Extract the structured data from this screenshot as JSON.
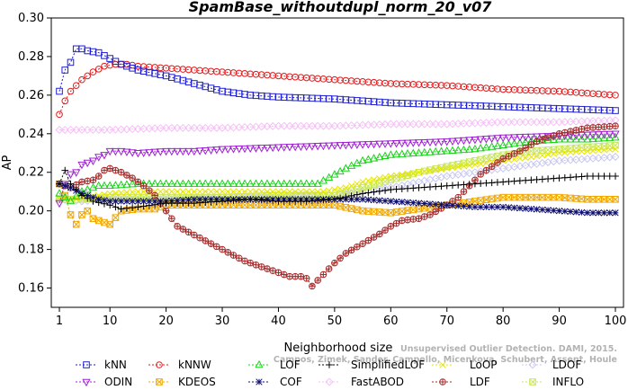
{
  "chart_data": {
    "type": "line",
    "title": "SpamBase_withoutdupl_norm_20_v07",
    "xlabel": "Neighborhood size",
    "ylabel": "AP",
    "xlim": [
      1,
      100
    ],
    "ylim": [
      0.15,
      0.3
    ],
    "x_ticks": [
      1,
      10,
      20,
      30,
      40,
      50,
      60,
      70,
      80,
      90,
      100
    ],
    "y_ticks": [
      0.16,
      0.18,
      0.2,
      0.22,
      0.24,
      0.26,
      0.28,
      0.3
    ],
    "x_tick_labels": [
      "1",
      "10",
      "20",
      "30",
      "40",
      "50",
      "60",
      "70",
      "80",
      "90",
      "100"
    ],
    "y_tick_labels": [
      "0.16",
      "0.18",
      "0.20",
      "0.22",
      "0.24",
      "0.26",
      "0.28",
      "0.30"
    ],
    "grid": false,
    "legend_position": "bottom",
    "series": [
      {
        "name": "kNN",
        "color": "#1f1fd4",
        "marker": "square",
        "points": [
          [
            1,
            0.262
          ],
          [
            2,
            0.273
          ],
          [
            3,
            0.277
          ],
          [
            4,
            0.284
          ],
          [
            5,
            0.284
          ],
          [
            6,
            0.283
          ],
          [
            8,
            0.282
          ],
          [
            10,
            0.279
          ],
          [
            12,
            0.276
          ],
          [
            15,
            0.273
          ],
          [
            20,
            0.27
          ],
          [
            25,
            0.266
          ],
          [
            30,
            0.262
          ],
          [
            35,
            0.26
          ],
          [
            40,
            0.259
          ],
          [
            50,
            0.258
          ],
          [
            60,
            0.256
          ],
          [
            70,
            0.255
          ],
          [
            80,
            0.254
          ],
          [
            90,
            0.253
          ],
          [
            100,
            0.252
          ]
        ]
      },
      {
        "name": "kNNW",
        "color": "#e31a1c",
        "marker": "circle",
        "points": [
          [
            1,
            0.25
          ],
          [
            2,
            0.257
          ],
          [
            3,
            0.262
          ],
          [
            5,
            0.268
          ],
          [
            7,
            0.272
          ],
          [
            9,
            0.275
          ],
          [
            11,
            0.276
          ],
          [
            13,
            0.276
          ],
          [
            15,
            0.275
          ],
          [
            20,
            0.274
          ],
          [
            30,
            0.272
          ],
          [
            40,
            0.27
          ],
          [
            50,
            0.268
          ],
          [
            60,
            0.266
          ],
          [
            70,
            0.265
          ],
          [
            80,
            0.263
          ],
          [
            90,
            0.262
          ],
          [
            100,
            0.26
          ]
        ]
      },
      {
        "name": "LOF",
        "color": "#19d419",
        "marker": "triangle-up",
        "points": [
          [
            1,
            0.209
          ],
          [
            3,
            0.205
          ],
          [
            5,
            0.21
          ],
          [
            8,
            0.213
          ],
          [
            10,
            0.213
          ],
          [
            15,
            0.214
          ],
          [
            20,
            0.214
          ],
          [
            30,
            0.214
          ],
          [
            40,
            0.214
          ],
          [
            47,
            0.214
          ],
          [
            52,
            0.222
          ],
          [
            55,
            0.226
          ],
          [
            60,
            0.229
          ],
          [
            65,
            0.23
          ],
          [
            70,
            0.231
          ],
          [
            75,
            0.232
          ],
          [
            80,
            0.234
          ],
          [
            85,
            0.236
          ],
          [
            90,
            0.237
          ],
          [
            95,
            0.237
          ],
          [
            100,
            0.238
          ]
        ]
      },
      {
        "name": "SimplifiedLOF",
        "color": "#000000",
        "marker": "plus",
        "points": [
          [
            1,
            0.214
          ],
          [
            2,
            0.221
          ],
          [
            3,
            0.214
          ],
          [
            5,
            0.208
          ],
          [
            7,
            0.205
          ],
          [
            10,
            0.203
          ],
          [
            12,
            0.201
          ],
          [
            15,
            0.202
          ],
          [
            20,
            0.204
          ],
          [
            25,
            0.204
          ],
          [
            30,
            0.205
          ],
          [
            35,
            0.206
          ],
          [
            40,
            0.205
          ],
          [
            45,
            0.205
          ],
          [
            50,
            0.206
          ],
          [
            55,
            0.209
          ],
          [
            60,
            0.211
          ],
          [
            65,
            0.212
          ],
          [
            70,
            0.213
          ],
          [
            75,
            0.214
          ],
          [
            80,
            0.215
          ],
          [
            85,
            0.216
          ],
          [
            90,
            0.217
          ],
          [
            95,
            0.218
          ],
          [
            100,
            0.218
          ]
        ]
      },
      {
        "name": "LoOP",
        "color": "#e6e600",
        "marker": "x",
        "points": [
          [
            1,
            0.207
          ],
          [
            3,
            0.206
          ],
          [
            5,
            0.207
          ],
          [
            8,
            0.208
          ],
          [
            10,
            0.209
          ],
          [
            15,
            0.21
          ],
          [
            20,
            0.21
          ],
          [
            30,
            0.21
          ],
          [
            40,
            0.21
          ],
          [
            48,
            0.21
          ],
          [
            52,
            0.212
          ],
          [
            55,
            0.215
          ],
          [
            60,
            0.218
          ],
          [
            65,
            0.22
          ],
          [
            70,
            0.222
          ],
          [
            75,
            0.224
          ],
          [
            80,
            0.226
          ],
          [
            85,
            0.228
          ],
          [
            90,
            0.23
          ],
          [
            95,
            0.231
          ],
          [
            100,
            0.232
          ]
        ]
      },
      {
        "name": "LDOF",
        "color": "#c8c8f0",
        "marker": "diamond",
        "points": [
          [
            1,
            0.206
          ],
          [
            5,
            0.205
          ],
          [
            10,
            0.206
          ],
          [
            15,
            0.206
          ],
          [
            20,
            0.206
          ],
          [
            30,
            0.207
          ],
          [
            40,
            0.207
          ],
          [
            50,
            0.208
          ],
          [
            55,
            0.21
          ],
          [
            60,
            0.212
          ],
          [
            65,
            0.215
          ],
          [
            70,
            0.218
          ],
          [
            75,
            0.22
          ],
          [
            80,
            0.222
          ],
          [
            85,
            0.224
          ],
          [
            90,
            0.226
          ],
          [
            95,
            0.227
          ],
          [
            100,
            0.228
          ]
        ]
      },
      {
        "name": "ODIN",
        "color": "#9f1fd4",
        "marker": "triangle-down",
        "points": [
          [
            1,
            0.204
          ],
          [
            2,
            0.214
          ],
          [
            3,
            0.219
          ],
          [
            4,
            0.22
          ],
          [
            5,
            0.224
          ],
          [
            6,
            0.225
          ],
          [
            7,
            0.226
          ],
          [
            8,
            0.228
          ],
          [
            9,
            0.229
          ],
          [
            10,
            0.231
          ],
          [
            12,
            0.231
          ],
          [
            15,
            0.23
          ],
          [
            20,
            0.231
          ],
          [
            25,
            0.231
          ],
          [
            30,
            0.232
          ],
          [
            40,
            0.233
          ],
          [
            50,
            0.234
          ],
          [
            60,
            0.235
          ],
          [
            70,
            0.236
          ],
          [
            80,
            0.238
          ],
          [
            90,
            0.239
          ],
          [
            100,
            0.24
          ]
        ]
      },
      {
        "name": "KDEOS",
        "color": "#f0a800",
        "marker": "square-x",
        "points": [
          [
            1,
            0.214
          ],
          [
            2,
            0.208
          ],
          [
            3,
            0.198
          ],
          [
            4,
            0.193
          ],
          [
            5,
            0.198
          ],
          [
            6,
            0.2
          ],
          [
            7,
            0.196
          ],
          [
            8,
            0.195
          ],
          [
            10,
            0.193
          ],
          [
            12,
            0.2
          ],
          [
            15,
            0.201
          ],
          [
            18,
            0.201
          ],
          [
            20,
            0.203
          ],
          [
            25,
            0.203
          ],
          [
            30,
            0.203
          ],
          [
            40,
            0.203
          ],
          [
            50,
            0.203
          ],
          [
            55,
            0.2
          ],
          [
            60,
            0.199
          ],
          [
            65,
            0.201
          ],
          [
            70,
            0.203
          ],
          [
            75,
            0.205
          ],
          [
            80,
            0.207
          ],
          [
            85,
            0.207
          ],
          [
            90,
            0.207
          ],
          [
            95,
            0.206
          ],
          [
            100,
            0.206
          ]
        ]
      },
      {
        "name": "COF",
        "color": "#101070",
        "marker": "star",
        "points": [
          [
            1,
            0.214
          ],
          [
            2,
            0.213
          ],
          [
            3,
            0.212
          ],
          [
            5,
            0.209
          ],
          [
            8,
            0.206
          ],
          [
            10,
            0.205
          ],
          [
            15,
            0.205
          ],
          [
            20,
            0.205
          ],
          [
            25,
            0.206
          ],
          [
            30,
            0.206
          ],
          [
            35,
            0.206
          ],
          [
            40,
            0.206
          ],
          [
            45,
            0.206
          ],
          [
            50,
            0.206
          ],
          [
            55,
            0.206
          ],
          [
            60,
            0.205
          ],
          [
            65,
            0.204
          ],
          [
            70,
            0.203
          ],
          [
            75,
            0.202
          ],
          [
            80,
            0.202
          ],
          [
            85,
            0.201
          ],
          [
            90,
            0.2
          ],
          [
            95,
            0.199
          ],
          [
            100,
            0.199
          ]
        ]
      },
      {
        "name": "FastABOD",
        "color": "#f5c0f5",
        "marker": "diamond",
        "points": [
          [
            1,
            0.242
          ],
          [
            5,
            0.242
          ],
          [
            10,
            0.242
          ],
          [
            20,
            0.243
          ],
          [
            30,
            0.243
          ],
          [
            40,
            0.244
          ],
          [
            50,
            0.244
          ],
          [
            60,
            0.245
          ],
          [
            70,
            0.245
          ],
          [
            80,
            0.246
          ],
          [
            90,
            0.246
          ],
          [
            100,
            0.247
          ]
        ]
      },
      {
        "name": "LDF",
        "color": "#a52a2a",
        "marker": "circle-plus",
        "points": [
          [
            1,
            0.214
          ],
          [
            3,
            0.212
          ],
          [
            5,
            0.215
          ],
          [
            7,
            0.216
          ],
          [
            8,
            0.218
          ],
          [
            9,
            0.221
          ],
          [
            10,
            0.222
          ],
          [
            12,
            0.22
          ],
          [
            14,
            0.217
          ],
          [
            16,
            0.213
          ],
          [
            18,
            0.208
          ],
          [
            20,
            0.2
          ],
          [
            22,
            0.192
          ],
          [
            24,
            0.189
          ],
          [
            26,
            0.186
          ],
          [
            28,
            0.183
          ],
          [
            30,
            0.18
          ],
          [
            32,
            0.177
          ],
          [
            34,
            0.174
          ],
          [
            36,
            0.172
          ],
          [
            38,
            0.17
          ],
          [
            40,
            0.168
          ],
          [
            42,
            0.166
          ],
          [
            44,
            0.166
          ],
          [
            45,
            0.165
          ],
          [
            46,
            0.161
          ],
          [
            48,
            0.167
          ],
          [
            50,
            0.173
          ],
          [
            52,
            0.178
          ],
          [
            55,
            0.183
          ],
          [
            58,
            0.188
          ],
          [
            60,
            0.192
          ],
          [
            62,
            0.195
          ],
          [
            65,
            0.196
          ],
          [
            67,
            0.198
          ],
          [
            70,
            0.203
          ],
          [
            72,
            0.207
          ],
          [
            74,
            0.213
          ],
          [
            76,
            0.219
          ],
          [
            78,
            0.223
          ],
          [
            80,
            0.227
          ],
          [
            83,
            0.231
          ],
          [
            86,
            0.236
          ],
          [
            90,
            0.24
          ],
          [
            95,
            0.243
          ],
          [
            100,
            0.244
          ]
        ]
      },
      {
        "name": "INFLO",
        "color": "#c8e65a",
        "marker": "square-x",
        "points": [
          [
            1,
            0.206
          ],
          [
            5,
            0.206
          ],
          [
            10,
            0.207
          ],
          [
            20,
            0.207
          ],
          [
            30,
            0.207
          ],
          [
            40,
            0.208
          ],
          [
            50,
            0.208
          ],
          [
            55,
            0.212
          ],
          [
            60,
            0.216
          ],
          [
            65,
            0.22
          ],
          [
            70,
            0.223
          ],
          [
            75,
            0.226
          ],
          [
            80,
            0.229
          ],
          [
            85,
            0.231
          ],
          [
            90,
            0.232
          ],
          [
            95,
            0.233
          ],
          [
            100,
            0.234
          ]
        ]
      }
    ],
    "legend_rows": [
      [
        "kNN",
        "kNNW",
        "LOF",
        "SimplifiedLOF",
        "LoOP",
        "LDOF"
      ],
      [
        "ODIN",
        "KDEOS",
        "COF",
        "FastABOD",
        "LDF",
        "INFLO"
      ]
    ]
  },
  "watermark": {
    "line1": "Unsupervised Outlier Detection. DAMI, 2015.",
    "line2": "Campos, Zimek, Sander, Campello, Micenkova, Schubert, Assent, Houle"
  }
}
